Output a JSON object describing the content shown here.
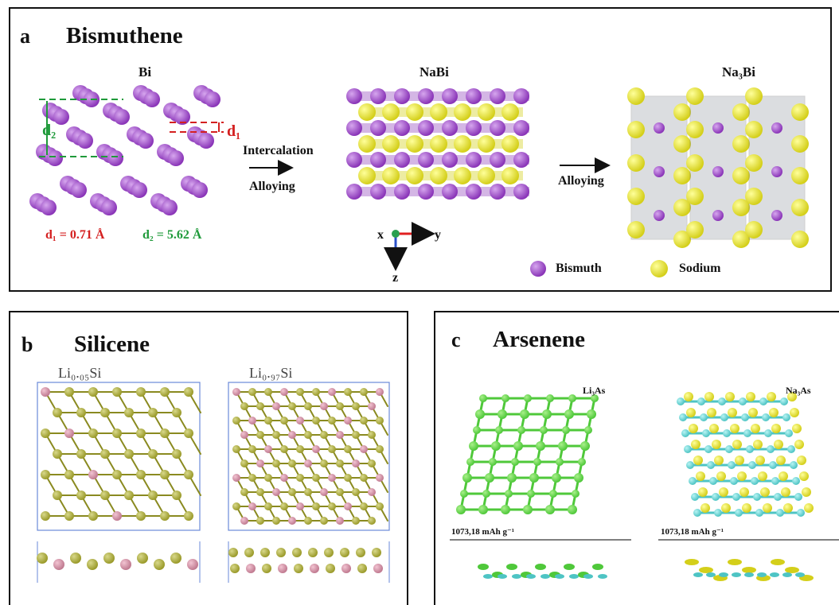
{
  "panel_a": {
    "letter": "a",
    "title": "Bismuthene",
    "bi_label": "Bi",
    "nabi_label": "NaBi",
    "na3bi_label": "Na₃Bi",
    "d1_marker": "d₁",
    "d2_marker": "d₂",
    "d_values": {
      "d1": "d₁ = 0.71 Å",
      "d2": "d₂ = 5.62 Å"
    },
    "arrow1_top": "Intercalation",
    "arrow1_bottom": "Alloying",
    "arrow2_label": "Alloying",
    "axes": {
      "x": "x",
      "y": "y",
      "z": "z"
    },
    "legend": {
      "bismuth": "Bismuth",
      "sodium": "Sodium"
    }
  },
  "panel_b": {
    "letter": "b",
    "title": "Silicene",
    "left_label": "Li₀.₀₅Si",
    "right_label": "Li₀.₉₇Si"
  },
  "panel_c": {
    "letter": "c",
    "title": "Arsenene",
    "left_label": "Li₃As",
    "right_label": "Na₃As",
    "left_capacity": "1073,18 mAh g⁻¹",
    "right_capacity": "1073,18 mAh g⁻¹"
  },
  "colors": {
    "bismuth": "#8a35b8",
    "sodium": "#d4cf1a",
    "silicon": "#9a9a2a",
    "lithium_pink": "#c07a90",
    "lithium_green": "#4fc83a",
    "arsenic_cyan": "#4ec4c4",
    "d1_red": "#d42020",
    "d2_green": "#1f9a3a",
    "axis_red": "#e02020",
    "axis_blue": "#2a50c8",
    "axis_green": "#2aa050"
  }
}
